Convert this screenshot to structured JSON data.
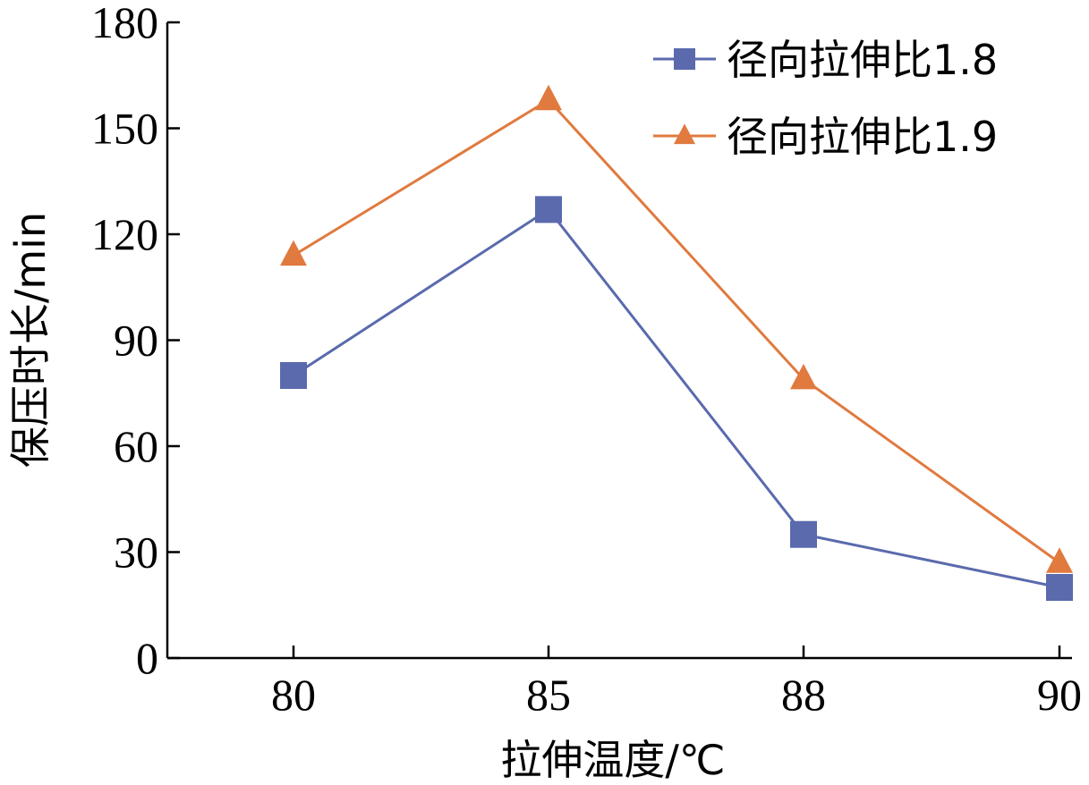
{
  "chart_data": {
    "type": "line",
    "categories": [
      "80",
      "85",
      "88",
      "90"
    ],
    "xlabel": "拉伸温度/℃",
    "ylabel": "保压时长/min",
    "ylim": [
      0,
      180
    ],
    "yticks": [
      "0",
      "30",
      "60",
      "90",
      "120",
      "150",
      "180"
    ],
    "grid": false,
    "legend_position": "top-right",
    "series": [
      {
        "name": "径向拉伸比1.8",
        "marker": "square",
        "color": "#5a6aad",
        "values": [
          80,
          127,
          35,
          20
        ]
      },
      {
        "name": "径向拉伸比1.9",
        "marker": "triangle",
        "color": "#e07a3f",
        "values": [
          114,
          158,
          79,
          27
        ]
      }
    ]
  }
}
